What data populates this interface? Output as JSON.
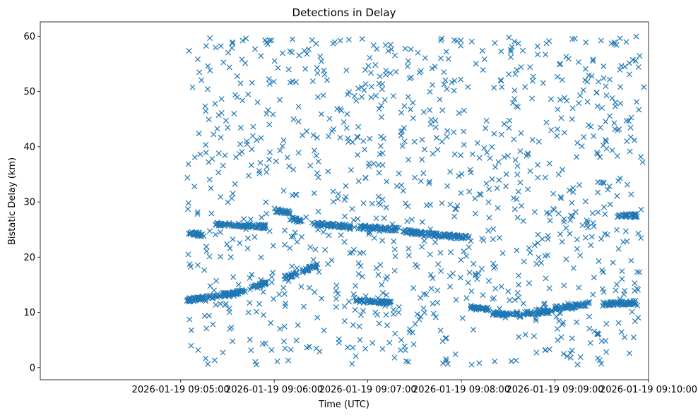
{
  "chart_data": {
    "type": "scatter",
    "title": "Detections in Delay",
    "xlabel": "Time (UTC)",
    "ylabel": "Bistatic Delay (km)",
    "marker": "x",
    "color": "#1f77b4",
    "xlim_seconds": [
      -90,
      300
    ],
    "ylim": [
      -2.2,
      62.6
    ],
    "x_ticks": [
      {
        "seconds": 0,
        "label": "2026-01-19 09:05:00"
      },
      {
        "seconds": 60,
        "label": "2026-01-19 09:06:00"
      },
      {
        "seconds": 120,
        "label": "2026-01-19 09:07:00"
      },
      {
        "seconds": 180,
        "label": "2026-01-19 09:08:00"
      },
      {
        "seconds": 240,
        "label": "2026-01-19 09:09:00"
      },
      {
        "seconds": 300,
        "label": "2026-01-19 09:10:00"
      }
    ],
    "y_ticks": [
      0,
      10,
      20,
      30,
      40,
      50,
      60
    ],
    "x_reference": "2026-01-19 09:05:00",
    "x_data_range_seconds": [
      4,
      297
    ],
    "track_segments": [
      {
        "t": [
          4,
          20
        ],
        "y": [
          12.2,
          12.8
        ]
      },
      {
        "t": [
          20,
          30
        ],
        "y": [
          12.8,
          13.4
        ]
      },
      {
        "t": [
          28,
          42
        ],
        "y": [
          13.0,
          14.0
        ]
      },
      {
        "t": [
          44,
          55
        ],
        "y": [
          14.2,
          15.3
        ]
      },
      {
        "t": [
          4,
          15
        ],
        "y": [
          24.5,
          24.0
        ]
      },
      {
        "t": [
          22,
          55
        ],
        "y": [
          26.0,
          25.5
        ]
      },
      {
        "t": [
          60,
          70
        ],
        "y": [
          28.5,
          28.0
        ]
      },
      {
        "t": [
          70,
          78
        ],
        "y": [
          27.0,
          26.5
        ]
      },
      {
        "t": [
          85,
          110
        ],
        "y": [
          26.0,
          25.5
        ]
      },
      {
        "t": [
          115,
          140
        ],
        "y": [
          25.5,
          25.0
        ]
      },
      {
        "t": [
          140,
          165
        ],
        "y": [
          24.8,
          24.0
        ]
      },
      {
        "t": [
          165,
          185
        ],
        "y": [
          24.0,
          23.5
        ]
      },
      {
        "t": [
          66,
          75
        ],
        "y": [
          16.3,
          17.0
        ]
      },
      {
        "t": [
          78,
          88
        ],
        "y": [
          17.5,
          18.5
        ]
      },
      {
        "t": [
          112,
          118
        ],
        "y": [
          12.2,
          12.0
        ]
      },
      {
        "t": [
          120,
          135
        ],
        "y": [
          12.0,
          11.8
        ]
      },
      {
        "t": [
          185,
          198
        ],
        "y": [
          11.0,
          10.5
        ]
      },
      {
        "t": [
          200,
          220
        ],
        "y": [
          9.8,
          9.5
        ]
      },
      {
        "t": [
          220,
          238
        ],
        "y": [
          9.8,
          10.2
        ]
      },
      {
        "t": [
          240,
          262
        ],
        "y": [
          10.8,
          11.5
        ]
      },
      {
        "t": [
          270,
          292
        ],
        "y": [
          11.5,
          11.8
        ]
      },
      {
        "t": [
          280,
          293
        ],
        "y": [
          27.5,
          27.5
        ]
      }
    ],
    "scatter_count": 1050
  }
}
